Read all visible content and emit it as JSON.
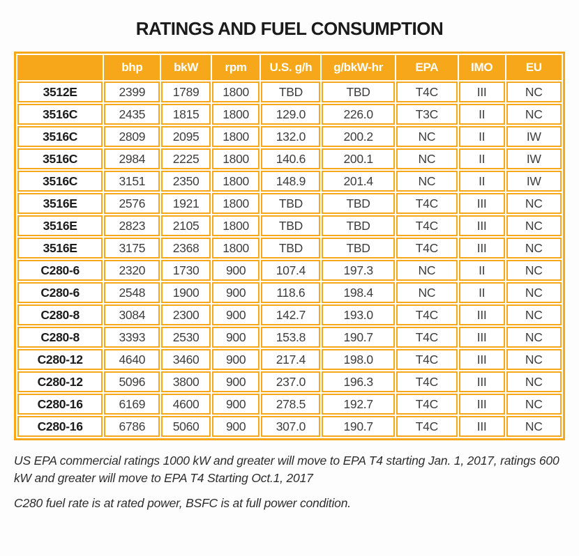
{
  "title": "RATINGS AND FUEL CONSUMPTION",
  "colors": {
    "accent": "#F7A81A",
    "header_text": "#FFFFFF",
    "body_text": "#3D3D3D",
    "title_text": "#1B1B1B"
  },
  "table": {
    "columns": [
      "",
      "bhp",
      "bkW",
      "rpm",
      "U.S. g/h",
      "g/bkW-hr",
      "EPA",
      "IMO",
      "EU"
    ],
    "column_widths_pct": [
      16.0,
      10.5,
      9.2,
      9.0,
      11.1,
      13.7,
      11.5,
      8.6,
      10.4
    ],
    "rows": [
      [
        "3512E",
        "2399",
        "1789",
        "1800",
        "TBD",
        "TBD",
        "T4C",
        "III",
        "NC"
      ],
      [
        "3516C",
        "2435",
        "1815",
        "1800",
        "129.0",
        "226.0",
        "T3C",
        "II",
        "NC"
      ],
      [
        "3516C",
        "2809",
        "2095",
        "1800",
        "132.0",
        "200.2",
        "NC",
        "II",
        "IW"
      ],
      [
        "3516C",
        "2984",
        "2225",
        "1800",
        "140.6",
        "200.1",
        "NC",
        "II",
        "IW"
      ],
      [
        "3516C",
        "3151",
        "2350",
        "1800",
        "148.9",
        "201.4",
        "NC",
        "II",
        "IW"
      ],
      [
        "3516E",
        "2576",
        "1921",
        "1800",
        "TBD",
        "TBD",
        "T4C",
        "III",
        "NC"
      ],
      [
        "3516E",
        "2823",
        "2105",
        "1800",
        "TBD",
        "TBD",
        "T4C",
        "III",
        "NC"
      ],
      [
        "3516E",
        "3175",
        "2368",
        "1800",
        "TBD",
        "TBD",
        "T4C",
        "III",
        "NC"
      ],
      [
        "C280-6",
        "2320",
        "1730",
        "900",
        "107.4",
        "197.3",
        "NC",
        "II",
        "NC"
      ],
      [
        "C280-6",
        "2548",
        "1900",
        "900",
        "118.6",
        "198.4",
        "NC",
        "II",
        "NC"
      ],
      [
        "C280-8",
        "3084",
        "2300",
        "900",
        "142.7",
        "193.0",
        "T4C",
        "III",
        "NC"
      ],
      [
        "C280-8",
        "3393",
        "2530",
        "900",
        "153.8",
        "190.7",
        "T4C",
        "III",
        "NC"
      ],
      [
        "C280-12",
        "4640",
        "3460",
        "900",
        "217.4",
        "198.0",
        "T4C",
        "III",
        "NC"
      ],
      [
        "C280-12",
        "5096",
        "3800",
        "900",
        "237.0",
        "196.3",
        "T4C",
        "III",
        "NC"
      ],
      [
        "C280-16",
        "6169",
        "4600",
        "900",
        "278.5",
        "192.7",
        "T4C",
        "III",
        "NC"
      ],
      [
        "C280-16",
        "6786",
        "5060",
        "900",
        "307.0",
        "190.7",
        "T4C",
        "III",
        "NC"
      ]
    ]
  },
  "footnotes": [
    "US EPA commercial ratings 1000 kW and greater will move to EPA T4 starting Jan. 1, 2017, ratings 600 kW and greater will move to EPA T4 Starting Oct.1, 2017",
    "C280 fuel rate is at rated power, BSFC is at full power condition."
  ]
}
